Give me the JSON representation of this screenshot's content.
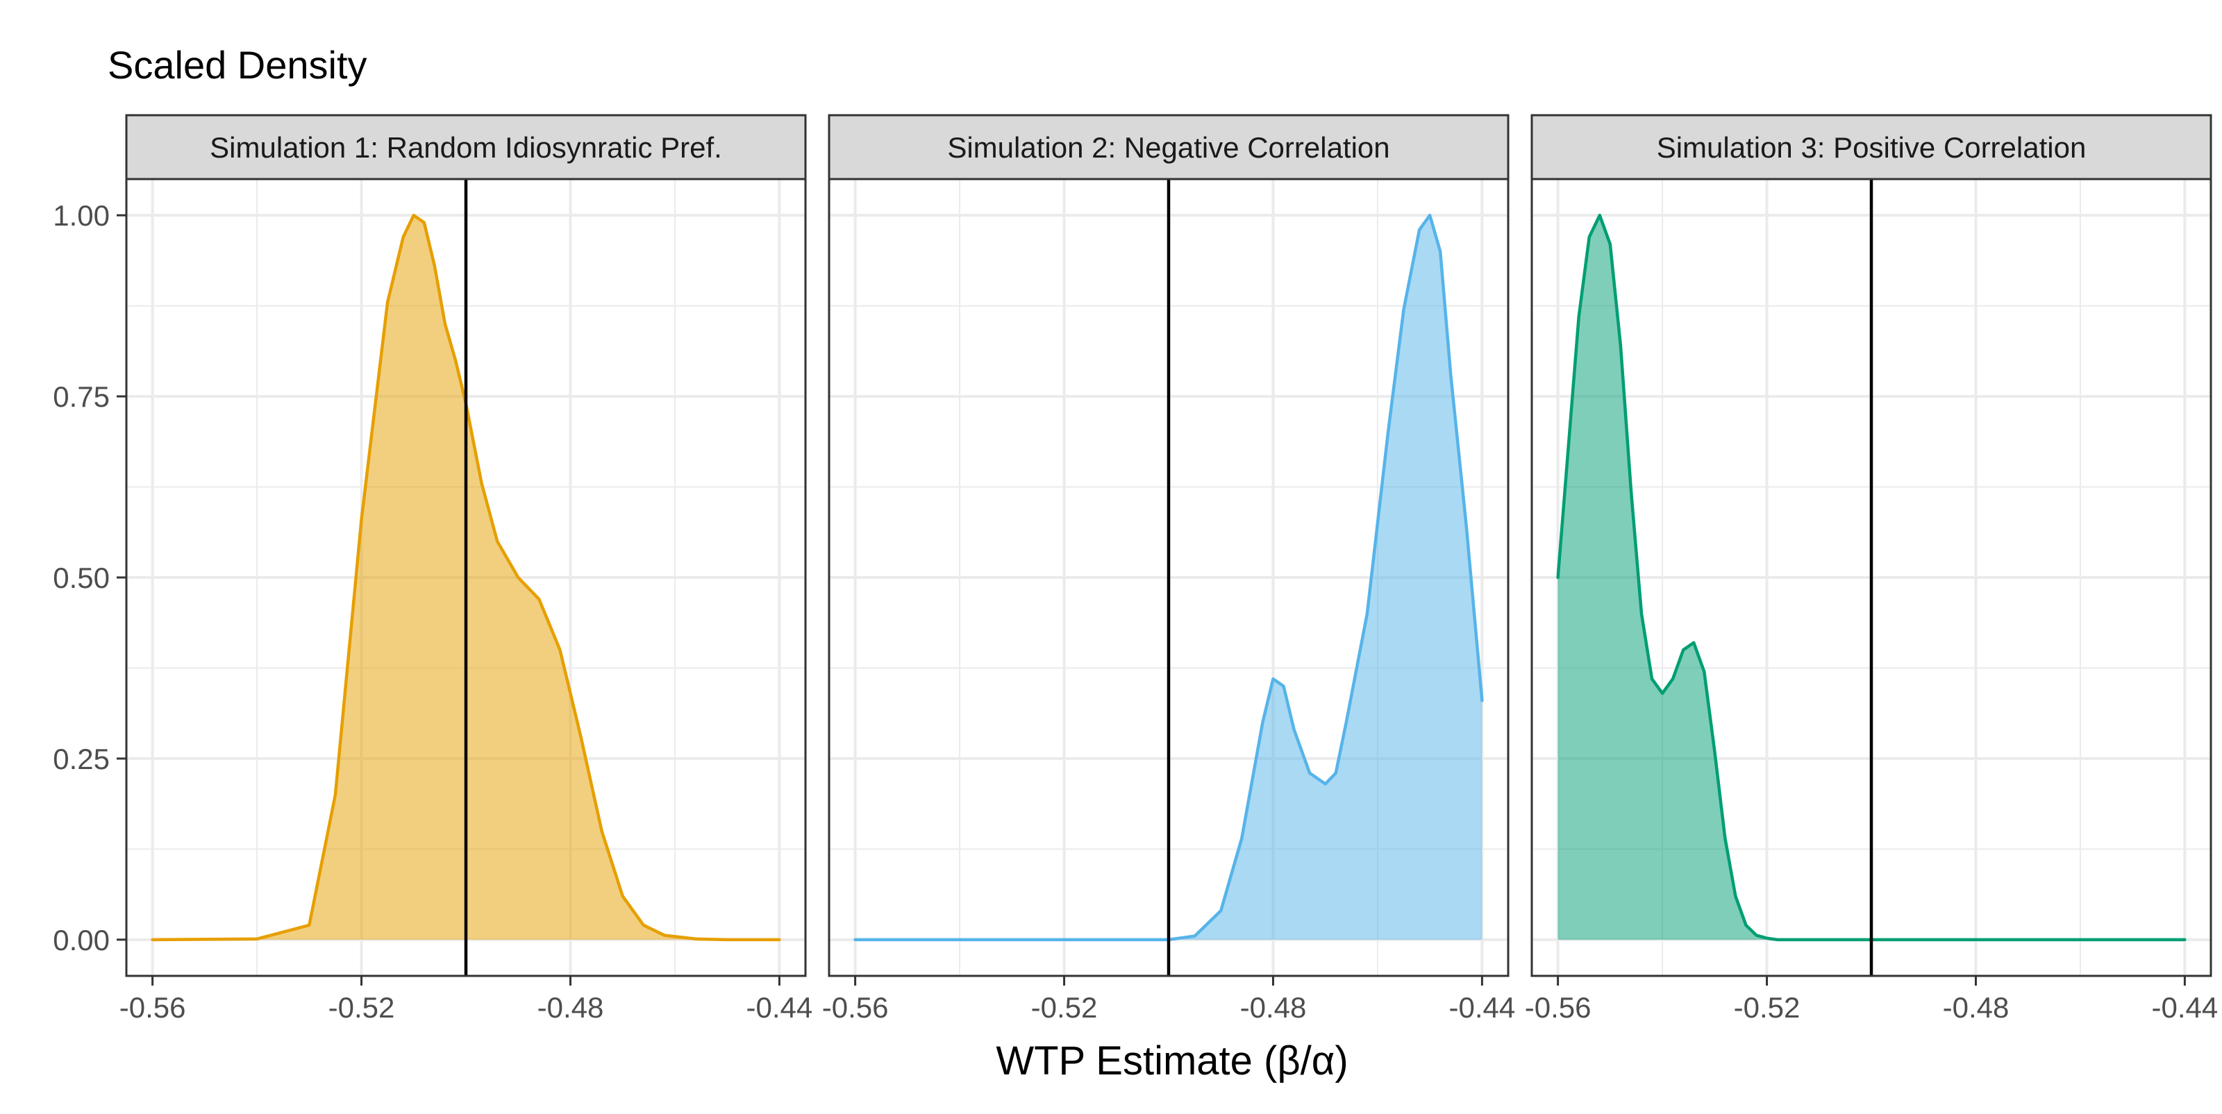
{
  "colors": {
    "panel_background": "#ffffff",
    "grid": "#ebebeb",
    "panel_border": "#333333",
    "strip_fill": "#d9d9d9",
    "axis_text": "#4d4d4d",
    "title_text": "#000000",
    "reference_line": "#000000"
  },
  "chart_data": {
    "type": "area",
    "title": "Scaled Density",
    "xlabel": "WTP Estimate (β/α)",
    "ylabel": "",
    "xlim": [
      -0.565,
      -0.435
    ],
    "ylim": [
      -0.05,
      1.05
    ],
    "x_ticks": [
      -0.56,
      -0.52,
      -0.48,
      -0.44
    ],
    "x_tick_labels": [
      "-0.56",
      "-0.52",
      "-0.48",
      "-0.44"
    ],
    "y_ticks": [
      0,
      0.25,
      0.5,
      0.75,
      1
    ],
    "y_tick_labels": [
      "0.00",
      "0.25",
      "0.50",
      "0.75",
      "1.00"
    ],
    "grid": true,
    "reference_line_x": -0.5,
    "panels": [
      {
        "strip_label": "Simulation 1: Random Idiosynratic Pref.",
        "color": "#E69F00",
        "fill_opacity": 0.5,
        "fill_range": [
          -0.56,
          -0.44
        ],
        "x": [
          -0.56,
          -0.54,
          -0.53,
          -0.525,
          -0.52,
          -0.515,
          -0.512,
          -0.51,
          -0.508,
          -0.506,
          -0.504,
          -0.502,
          -0.5,
          -0.497,
          -0.494,
          -0.49,
          -0.486,
          -0.482,
          -0.478,
          -0.474,
          -0.47,
          -0.466,
          -0.462,
          -0.456,
          -0.45,
          -0.44
        ],
        "y": [
          0.0,
          0.001,
          0.02,
          0.2,
          0.58,
          0.88,
          0.97,
          1.0,
          0.99,
          0.93,
          0.85,
          0.8,
          0.74,
          0.63,
          0.55,
          0.5,
          0.47,
          0.4,
          0.28,
          0.15,
          0.06,
          0.02,
          0.006,
          0.001,
          0.0,
          0.0
        ]
      },
      {
        "strip_label": "Simulation 2: Negative Correlation",
        "color": "#56B4E9",
        "fill_opacity": 0.5,
        "fill_range": [
          -0.5,
          -0.44
        ],
        "x": [
          -0.56,
          -0.52,
          -0.5,
          -0.495,
          -0.49,
          -0.486,
          -0.482,
          -0.48,
          -0.478,
          -0.476,
          -0.473,
          -0.47,
          -0.468,
          -0.466,
          -0.462,
          -0.458,
          -0.455,
          -0.452,
          -0.45,
          -0.448,
          -0.446,
          -0.443,
          -0.44
        ],
        "y": [
          0.0,
          0.0,
          0.0,
          0.005,
          0.04,
          0.14,
          0.3,
          0.36,
          0.35,
          0.29,
          0.23,
          0.215,
          0.23,
          0.3,
          0.45,
          0.7,
          0.87,
          0.98,
          1.0,
          0.95,
          0.78,
          0.57,
          0.33
        ]
      },
      {
        "strip_label": "Simulation 3: Positive Correlation",
        "color": "#009E73",
        "fill_opacity": 0.5,
        "fill_range": [
          -0.56,
          -0.52
        ],
        "x": [
          -0.56,
          -0.558,
          -0.556,
          -0.554,
          -0.552,
          -0.55,
          -0.548,
          -0.546,
          -0.544,
          -0.542,
          -0.54,
          -0.538,
          -0.536,
          -0.534,
          -0.532,
          -0.53,
          -0.528,
          -0.526,
          -0.524,
          -0.522,
          -0.52,
          -0.518,
          -0.515,
          -0.51,
          -0.5,
          -0.48,
          -0.44
        ],
        "y": [
          0.5,
          0.68,
          0.86,
          0.97,
          1.0,
          0.96,
          0.82,
          0.62,
          0.45,
          0.36,
          0.34,
          0.36,
          0.4,
          0.41,
          0.37,
          0.26,
          0.14,
          0.06,
          0.02,
          0.006,
          0.002,
          0.0,
          0.0,
          0.0,
          0.0,
          0.0,
          0.0
        ]
      }
    ]
  }
}
